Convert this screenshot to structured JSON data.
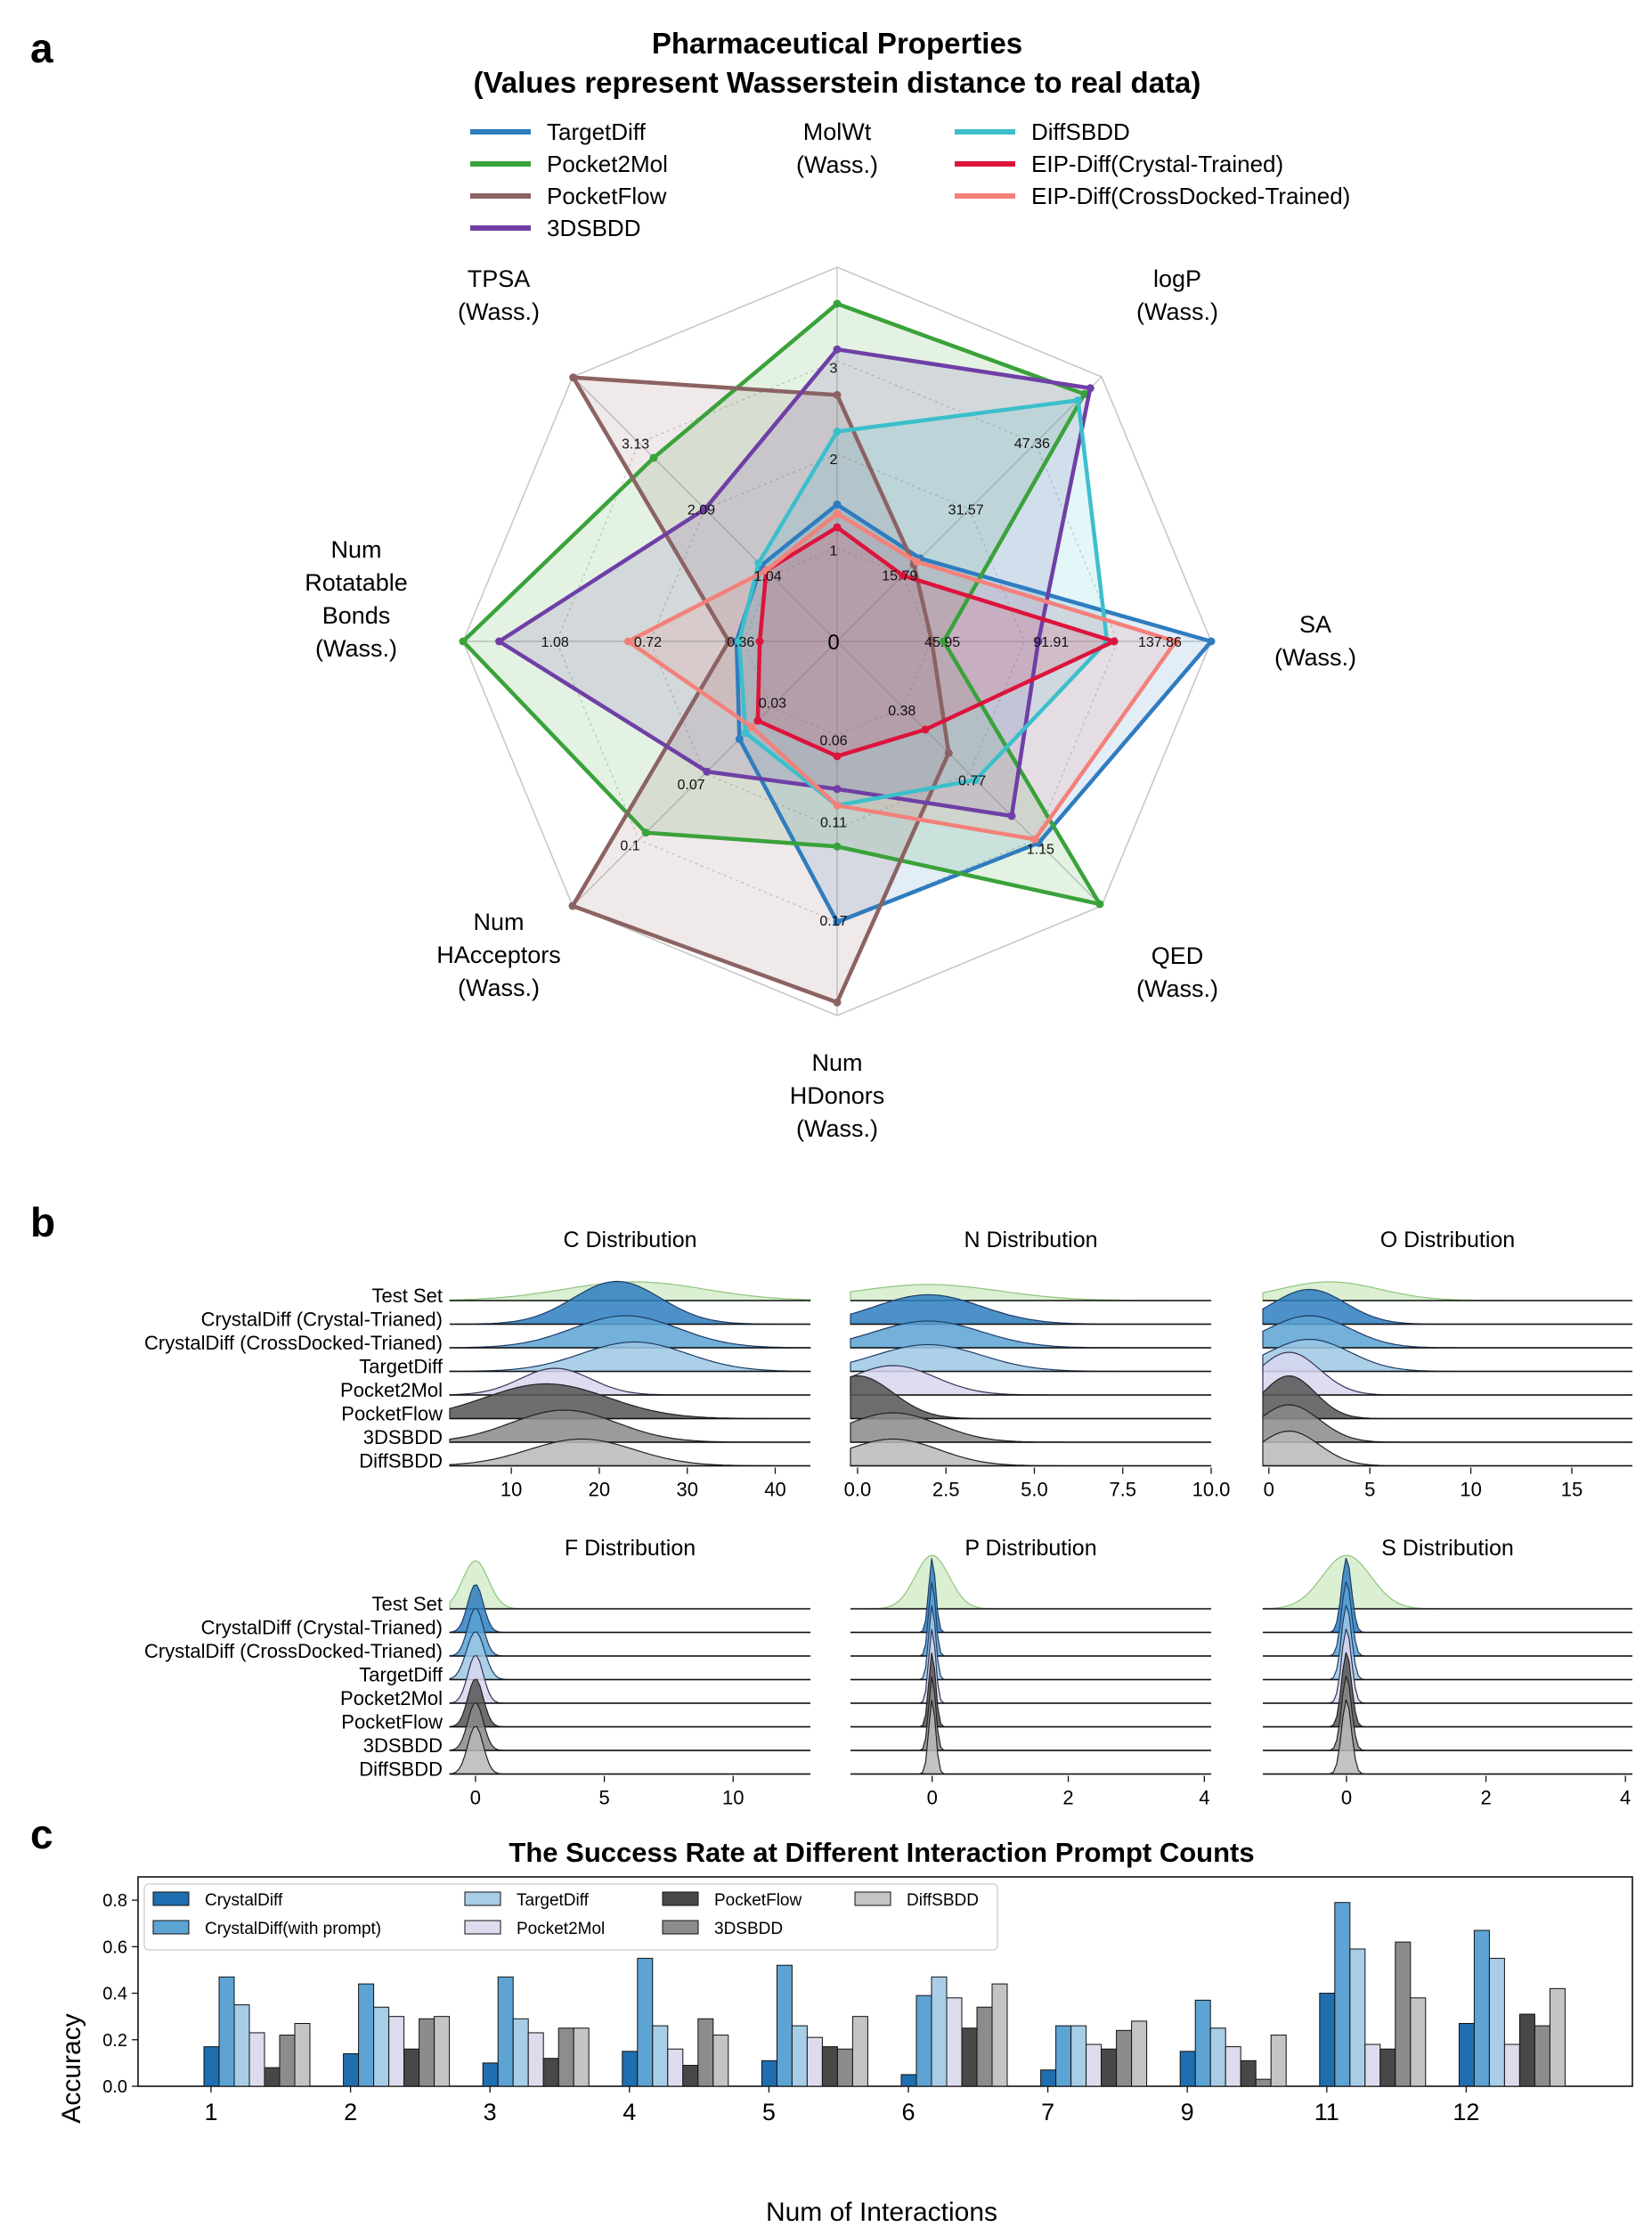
{
  "panels": {
    "a": "a",
    "b": "b",
    "c": "c"
  },
  "colors": {
    "TargetDiff": "#2f7cbf",
    "Pocket2Mol": "#3aa23a",
    "PocketFlow": "#8c6262",
    "3DSBDD": "#6f3fa5",
    "DiffSBDD": "#3cbfcc",
    "EIP-Diff(Crystal-Trained)": "#dc143c",
    "EIP-Diff(CrossDocked-Trained)": "#f4807a",
    "grid": "#c8c8c8",
    "test_set": "#cfe9c4",
    "test_set_edge": "#8fc57c",
    "CrystalDiff": "#1f6eb0",
    "CrystalDiff(with prompt)": "#5da4d4",
    "TargetDiff_bar": "#a8cde6",
    "Pocket2Mol_bar": "#dcdcee",
    "PocketFlow_bar": "#484848",
    "3DSBDD_bar": "#8c8c8c",
    "DiffSBDD_bar": "#c4c4c4"
  },
  "chart_data": [
    {
      "type": "radar",
      "title": "Pharmaceutical Properties",
      "subtitle": "(Values represent Wasserstein distance to real data)",
      "legend_placement": "top",
      "axes": [
        {
          "label": "MolWt (Wass.)",
          "ticks": [
            "1",
            "2",
            "3"
          ],
          "max": 4.1
        },
        {
          "label": "logP (Wass.)",
          "ticks": [
            "15.79",
            "31.57",
            "47.36"
          ],
          "max": 63.1
        },
        {
          "label": "SA (Wass.)",
          "ticks": [
            "45.95",
            "91.91",
            "137.86"
          ],
          "max": 158.0
        },
        {
          "label": "QED (Wass.)",
          "ticks": [
            "0.38",
            "0.77",
            "1.15"
          ],
          "max": 1.47
        },
        {
          "label": "Num HDonors (Wass.)",
          "ticks": [
            "0.06",
            "0.11",
            "0.17"
          ],
          "max": 0.228
        },
        {
          "label": "Num HAcceptors (Wass.)",
          "ticks": [
            "0.03",
            "0.07",
            "0.1"
          ],
          "max": 0.13
        },
        {
          "label": "Num Rotatable Bonds (Wass.)",
          "ticks": [
            "0.36",
            "0.72",
            "1.08"
          ],
          "max": 1.45
        },
        {
          "label": "TPSA (Wass.)",
          "ticks": [
            "1.04",
            "2.09",
            "3.13"
          ],
          "max": 4.18
        }
      ],
      "center_label": "0",
      "series": [
        {
          "name": "TargetDiff",
          "values": [
            1.5,
            19.8,
            158.0,
            1.12,
            0.171,
            0.048,
            0.39,
            1.2
          ]
        },
        {
          "name": "Pocket2Mol",
          "values": [
            3.7,
            59.0,
            45.0,
            1.46,
            0.125,
            0.094,
            1.45,
            2.9
          ]
        },
        {
          "name": "PocketFlow",
          "values": [
            2.7,
            18.3,
            40.0,
            0.62,
            0.22,
            0.13,
            0.42,
            4.17
          ]
        },
        {
          "name": "3DSBDD",
          "values": [
            3.2,
            60.4,
            85.0,
            0.97,
            0.09,
            0.064,
            1.31,
            2.09
          ]
        },
        {
          "name": "DiffSBDD",
          "values": [
            2.3,
            57.5,
            114.0,
            0.77,
            0.1,
            0.045,
            0.38,
            1.24
          ]
        },
        {
          "name": "EIP-Diff(Crystal-Trained)",
          "values": [
            1.25,
            15.7,
            117.0,
            0.49,
            0.07,
            0.039,
            0.3,
            1.12
          ]
        },
        {
          "name": "EIP-Diff(CrossDocked-Trained)",
          "values": [
            1.4,
            19.0,
            143.0,
            1.1,
            0.1,
            0.042,
            0.81,
            1.12
          ]
        }
      ]
    },
    {
      "type": "ridgeline",
      "rows": [
        "Test Set",
        "CrystalDiff (Crystal-Trianed)",
        "CrystalDiff (CrossDocked-Trianed)",
        "TargetDiff",
        "Pocket2Mol",
        "PocketFlow",
        "3DSBDD",
        "DiffSBDD"
      ],
      "panels": [
        {
          "title": "C Distribution",
          "xlim": [
            3,
            44
          ],
          "xticks": [
            "10",
            "20",
            "30",
            "40"
          ],
          "modes": [
            24,
            22,
            23,
            24,
            15,
            14,
            16,
            18
          ],
          "spreads": [
            8,
            5,
            6,
            6,
            4,
            7,
            6,
            6
          ],
          "peaks": [
            0.35,
            0.8,
            0.6,
            0.55,
            0.5,
            0.65,
            0.6,
            0.5
          ]
        },
        {
          "title": "N Distribution",
          "xlim": [
            -0.2,
            10
          ],
          "xticks": [
            "0.0",
            "2.5",
            "5.0",
            "7.5",
            "10.0"
          ],
          "modes": [
            2,
            2,
            2,
            2,
            1,
            0,
            1,
            1
          ],
          "spreads": [
            2,
            1.5,
            1.5,
            1.5,
            1.2,
            1,
            1.3,
            1.3
          ],
          "peaks": [
            0.3,
            0.55,
            0.5,
            0.5,
            0.55,
            0.8,
            0.55,
            0.5
          ]
        },
        {
          "title": "O Distribution",
          "xlim": [
            -0.3,
            18
          ],
          "xticks": [
            "0",
            "5",
            "10",
            "15"
          ],
          "modes": [
            3,
            2,
            2,
            2,
            1,
            1,
            1,
            1
          ],
          "spreads": [
            2.5,
            1.8,
            2,
            2,
            1.5,
            1.3,
            1.5,
            1.5
          ],
          "peaks": [
            0.35,
            0.65,
            0.6,
            0.6,
            0.8,
            0.8,
            0.7,
            0.65
          ]
        },
        {
          "title": "F Distribution",
          "xlim": [
            -1,
            13
          ],
          "xticks": [
            "0",
            "5",
            "10"
          ],
          "modes": [
            0,
            0,
            0,
            0,
            0,
            0,
            0,
            0
          ],
          "spreads": [
            0.5,
            0.3,
            0.3,
            0.35,
            0.3,
            0.3,
            0.3,
            0.3
          ],
          "peaks": [
            0.9,
            0.9,
            0.9,
            0.9,
            0.9,
            0.9,
            0.9,
            0.9
          ]
        },
        {
          "title": "P Distribution",
          "xlim": [
            -1.2,
            4.1
          ],
          "xticks": [
            "0",
            "2",
            "4"
          ],
          "modes": [
            0,
            0,
            0,
            0,
            0,
            0,
            0,
            0
          ],
          "spreads": [
            0.25,
            0.05,
            0.05,
            0.05,
            0.05,
            0.05,
            0.05,
            0.05
          ],
          "peaks": [
            1.0,
            1.4,
            1.4,
            1.4,
            1.4,
            1.4,
            1.4,
            1.4
          ]
        },
        {
          "title": "S Distribution",
          "xlim": [
            -1.2,
            4.1
          ],
          "xticks": [
            "0",
            "2",
            "4"
          ],
          "modes": [
            0,
            0,
            0,
            0,
            0,
            0,
            0,
            0
          ],
          "spreads": [
            0.35,
            0.07,
            0.07,
            0.07,
            0.07,
            0.07,
            0.07,
            0.07
          ],
          "peaks": [
            1.0,
            1.4,
            1.4,
            1.4,
            1.4,
            1.4,
            1.4,
            1.4
          ]
        }
      ]
    },
    {
      "type": "bar",
      "title": "The Success Rate at Different Interaction Prompt Counts",
      "xlabel": "Num of Interactions",
      "ylabel": "Accuracy",
      "ylim": [
        0,
        0.9
      ],
      "yticks": [
        "0.0",
        "0.2",
        "0.4",
        "0.6",
        "0.8"
      ],
      "categories": [
        "1",
        "2",
        "3",
        "4",
        "5",
        "6",
        "7",
        "9",
        "11",
        "12"
      ],
      "legend_placement": "top-left",
      "series": [
        {
          "name": "CrystalDiff",
          "values": [
            0.17,
            0.14,
            0.1,
            0.15,
            0.11,
            0.05,
            0.07,
            0.15,
            0.4,
            0.27
          ]
        },
        {
          "name": "CrystalDiff(with prompt)",
          "values": [
            0.47,
            0.44,
            0.47,
            0.55,
            0.52,
            0.39,
            0.26,
            0.37,
            0.79,
            0.67
          ]
        },
        {
          "name": "TargetDiff",
          "values": [
            0.35,
            0.34,
            0.29,
            0.26,
            0.26,
            0.47,
            0.26,
            0.25,
            0.59,
            0.55
          ]
        },
        {
          "name": "Pocket2Mol",
          "values": [
            0.23,
            0.3,
            0.23,
            0.16,
            0.21,
            0.38,
            0.18,
            0.17,
            0.18,
            0.18
          ]
        },
        {
          "name": "PocketFlow",
          "values": [
            0.08,
            0.16,
            0.12,
            0.09,
            0.17,
            0.25,
            0.16,
            0.11,
            0.16,
            0.31
          ]
        },
        {
          "name": "3DSBDD",
          "values": [
            0.22,
            0.29,
            0.25,
            0.29,
            0.16,
            0.34,
            0.24,
            0.03,
            0.62,
            0.26
          ]
        },
        {
          "name": "DiffSBDD",
          "values": [
            0.27,
            0.3,
            0.25,
            0.22,
            0.3,
            0.44,
            0.28,
            0.22,
            0.38,
            0.42
          ]
        }
      ]
    }
  ]
}
